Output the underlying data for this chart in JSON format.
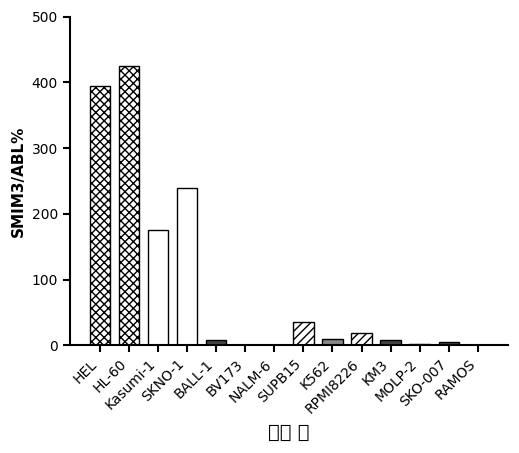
{
  "categories": [
    "HEL",
    "HL-60",
    "Kasumi-1",
    "SKNO-1",
    "BALL-1",
    "BV173",
    "NALM-6",
    "SUPB15",
    "K562",
    "RPMI8226",
    "KM3",
    "MOLP-2",
    "SKO-007",
    "RAMOS"
  ],
  "values": [
    395,
    425,
    175,
    240,
    8,
    0.8,
    0.8,
    35,
    10,
    18,
    8,
    1.5,
    5,
    1
  ],
  "xlabel": "细胞 系",
  "ylabel": "SMIM3/ABL%",
  "ylim": [
    0,
    500
  ],
  "yticks": [
    0,
    100,
    200,
    300,
    400,
    500
  ],
  "ylabel_fontsize": 11,
  "xlabel_fontsize": 14,
  "tick_fontsize": 10,
  "bar_width": 0.7
}
